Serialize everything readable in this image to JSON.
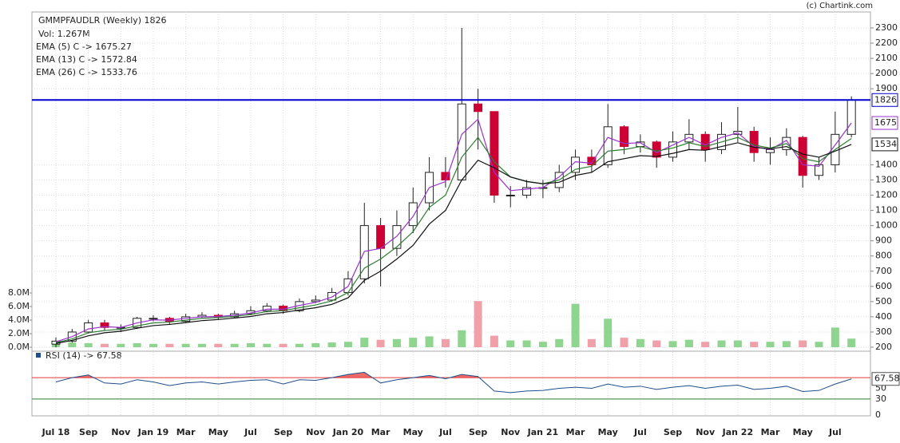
{
  "chart_data": {
    "type": "candlestick",
    "title": "GMMPFAUDLR (Weekly) 1826",
    "volume_label": "Vol: 1.267M",
    "copyright": "(c) Chartink.com",
    "categories": [
      "Jul 18",
      null,
      "Sep",
      null,
      "Nov",
      null,
      "Jan 19",
      null,
      "Mar",
      null,
      "May",
      null,
      "Jul",
      null,
      "Sep",
      null,
      "Nov",
      null,
      "Jan 20",
      null,
      "Mar",
      null,
      "May",
      null,
      "Jul",
      null,
      "Sep",
      null,
      "Nov",
      null,
      "Jan 21",
      null,
      "Mar",
      null,
      "May",
      null,
      "Jul",
      null,
      "Sep",
      null,
      "Nov",
      null,
      "Jan 22",
      null,
      "Mar",
      null,
      "May",
      null,
      "Jul",
      null
    ],
    "open": [
      220,
      240,
      300,
      360,
      330,
      330,
      390,
      390,
      370,
      400,
      410,
      400,
      420,
      440,
      470,
      440,
      500,
      510,
      560,
      650,
      1000,
      850,
      1000,
      1150,
      1350,
      1300,
      1800,
      1750,
      1200,
      1200,
      1250,
      1250,
      1350,
      1450,
      1400,
      1650,
      1520,
      1550,
      1450,
      1550,
      1600,
      1500,
      1600,
      1620,
      1480,
      1500,
      1580,
      1330,
      1400,
      1600
    ],
    "high": [
      265,
      320,
      380,
      380,
      350,
      400,
      410,
      400,
      420,
      430,
      420,
      440,
      470,
      490,
      480,
      520,
      540,
      590,
      700,
      1150,
      1050,
      1100,
      1250,
      1450,
      1450,
      2300,
      1900,
      1750,
      1260,
      1300,
      1300,
      1400,
      1500,
      1500,
      1800,
      1660,
      1600,
      1560,
      1620,
      1700,
      1620,
      1680,
      1780,
      1650,
      1580,
      1640,
      1590,
      1450,
      1750,
      1850
    ],
    "low": [
      200,
      230,
      290,
      310,
      300,
      320,
      370,
      350,
      360,
      390,
      380,
      390,
      410,
      430,
      420,
      430,
      490,
      500,
      540,
      620,
      600,
      800,
      950,
      1100,
      1250,
      1300,
      1500,
      1150,
      1120,
      1180,
      1180,
      1220,
      1300,
      1350,
      1380,
      1470,
      1480,
      1380,
      1420,
      1500,
      1420,
      1470,
      1550,
      1420,
      1400,
      1460,
      1250,
      1300,
      1350,
      1580
    ],
    "close": [
      240,
      300,
      360,
      330,
      330,
      390,
      390,
      370,
      400,
      410,
      400,
      420,
      440,
      470,
      440,
      500,
      510,
      560,
      650,
      1000,
      850,
      1000,
      1150,
      1350,
      1300,
      1800,
      1750,
      1200,
      1200,
      1250,
      1250,
      1350,
      1450,
      1400,
      1650,
      1520,
      1550,
      1450,
      1550,
      1600,
      1500,
      1600,
      1620,
      1480,
      1500,
      1580,
      1330,
      1400,
      1600,
      1826
    ],
    "up_color": "#ffffff",
    "down_color": "#cc0033",
    "ylim": [
      200,
      2300
    ],
    "yticks": [
      200,
      300,
      400,
      500,
      600,
      700,
      800,
      900,
      1000,
      1100,
      1200,
      1300,
      1400,
      1900,
      2000,
      2100,
      2200,
      2300
    ],
    "grid": true,
    "series": [
      {
        "name": "EMA (5) C -> 1675.27",
        "color": "#9933cc",
        "values": [
          235,
          270,
          320,
          335,
          330,
          360,
          380,
          378,
          390,
          400,
          402,
          410,
          425,
          450,
          450,
          475,
          495,
          530,
          600,
          830,
          850,
          930,
          1060,
          1250,
          1290,
          1600,
          1700,
          1350,
          1230,
          1240,
          1250,
          1320,
          1420,
          1410,
          1580,
          1540,
          1545,
          1480,
          1530,
          1580,
          1530,
          1580,
          1610,
          1520,
          1500,
          1560,
          1400,
          1390,
          1530,
          1675.27
        ]
      },
      {
        "name": "EMA (13) C -> 1572.84",
        "color": "#2e7d32",
        "values": [
          230,
          255,
          295,
          310,
          318,
          340,
          360,
          365,
          378,
          390,
          395,
          403,
          415,
          435,
          440,
          460,
          478,
          505,
          560,
          720,
          780,
          860,
          960,
          1120,
          1200,
          1450,
          1580,
          1420,
          1320,
          1290,
          1275,
          1300,
          1370,
          1390,
          1490,
          1500,
          1520,
          1490,
          1510,
          1545,
          1520,
          1550,
          1580,
          1530,
          1510,
          1540,
          1440,
          1420,
          1500,
          1572.84
        ]
      },
      {
        "name": "EMA (26) C -> 1533.76",
        "color": "#111111",
        "values": [
          225,
          245,
          275,
          295,
          305,
          325,
          342,
          350,
          362,
          375,
          382,
          392,
          402,
          420,
          428,
          445,
          460,
          482,
          525,
          640,
          700,
          780,
          870,
          1010,
          1100,
          1300,
          1430,
          1380,
          1320,
          1290,
          1275,
          1285,
          1330,
          1350,
          1420,
          1440,
          1460,
          1455,
          1475,
          1500,
          1495,
          1520,
          1545,
          1515,
          1505,
          1520,
          1470,
          1450,
          1490,
          1533.76
        ]
      }
    ],
    "hline": {
      "value": 1826,
      "color": "#0000cc"
    },
    "markers": [
      {
        "value": 1826,
        "color": "#0000cc"
      },
      {
        "value": 1675,
        "color": "#9933cc"
      },
      {
        "value": 1534,
        "color": "#111111"
      }
    ],
    "volume": [
      0.6,
      0.7,
      0.6,
      0.5,
      0.5,
      0.6,
      0.5,
      0.5,
      0.5,
      0.5,
      0.5,
      0.5,
      0.6,
      0.5,
      0.5,
      0.5,
      0.6,
      0.7,
      0.8,
      1.4,
      1.1,
      1.2,
      1.4,
      1.6,
      1.2,
      2.5,
      6.8,
      1.7,
      1.0,
      1.0,
      0.8,
      1.2,
      6.4,
      1.2,
      4.2,
      1.4,
      1.2,
      1.0,
      0.9,
      1.1,
      0.8,
      1.0,
      1.0,
      0.8,
      0.8,
      0.9,
      1.0,
      0.8,
      2.9,
      1.267
    ],
    "vlim": [
      0,
      8
    ],
    "vticks": [
      {
        "value": 0,
        "label": "0.0M"
      },
      {
        "value": 2,
        "label": "2.0M"
      },
      {
        "value": 4,
        "label": "4.0M"
      },
      {
        "value": 6,
        "label": "6.0M"
      },
      {
        "value": 8,
        "label": "8.0M"
      }
    ],
    "vol_up_color": "#8fd48f",
    "vol_down_color": "#f0a0a8",
    "rsi": {
      "name": "RSI (14) -> 67.58",
      "color": "#1f4e8c",
      "values": [
        62,
        70,
        75,
        60,
        58,
        66,
        62,
        55,
        60,
        62,
        58,
        62,
        65,
        66,
        58,
        66,
        65,
        70,
        76,
        80,
        60,
        66,
        70,
        74,
        68,
        76,
        72,
        45,
        42,
        45,
        46,
        50,
        52,
        50,
        58,
        52,
        54,
        48,
        52,
        55,
        50,
        54,
        56,
        48,
        50,
        54,
        44,
        46,
        58,
        67.58
      ],
      "ylim": [
        0,
        100
      ],
      "yticks": [
        0,
        30,
        50
      ],
      "overbought": {
        "value": 70,
        "color": "#e53935"
      },
      "oversold": {
        "value": 30,
        "color": "#2e7d32"
      },
      "marker": 67.58
    }
  }
}
